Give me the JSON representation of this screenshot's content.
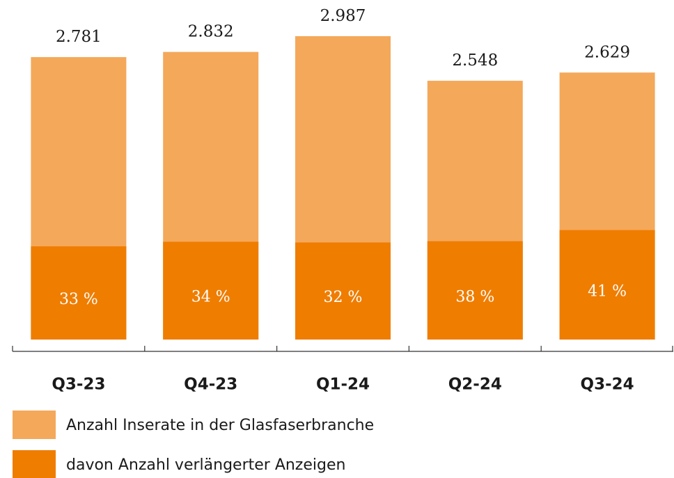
{
  "chart_data": {
    "type": "bar",
    "categories": [
      "Q3-23",
      "Q4-23",
      "Q1-24",
      "Q2-24",
      "Q3-24"
    ],
    "series": [
      {
        "name": "Anzahl Inserate in der Glasfaserbranche",
        "color": "#f4a85a",
        "values": [
          2781,
          2832,
          2987,
          2548,
          2629
        ],
        "value_labels": [
          "2.781",
          "2.832",
          "2.987",
          "2.548",
          "2.629"
        ]
      },
      {
        "name": "davon Anzahl verlängerter Anzeigen",
        "color": "#ef7d00",
        "values": [
          33,
          34,
          32,
          38,
          41
        ],
        "value_labels": [
          "33 %",
          "34 %",
          "32 %",
          "38 %",
          "41 %"
        ]
      }
    ],
    "ylim": [
      0,
      3100
    ]
  }
}
